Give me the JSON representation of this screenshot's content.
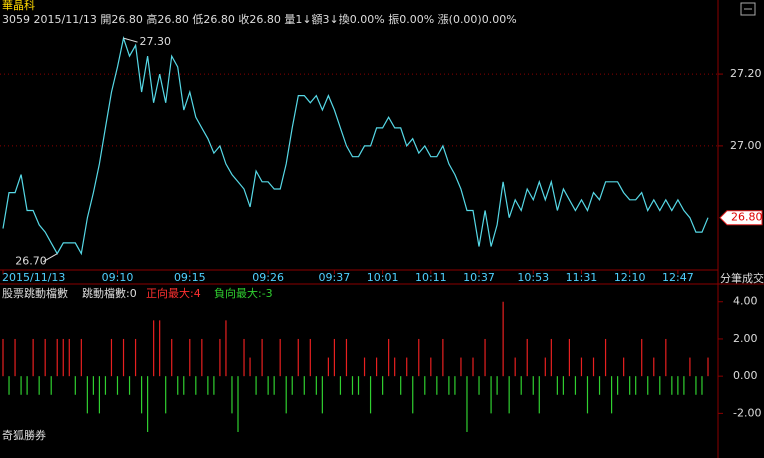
{
  "header": {
    "name": "華晶科",
    "info": "3059 2015/11/13 開26.80 高26.80 低26.80 收26.80 量1↓額3↓換0.00% 振0.00% 漲(0.00)0.00%"
  },
  "chart_data": [
    {
      "type": "line",
      "xlabel": "分筆成交",
      "color": "#56d8e6",
      "grid": true,
      "categories": [
        "2015/11/13",
        null,
        null,
        null,
        null,
        null,
        null,
        null,
        null,
        null,
        null,
        null,
        null,
        null,
        null,
        null,
        null,
        null,
        null,
        "09:10",
        null,
        null,
        null,
        null,
        null,
        null,
        null,
        null,
        null,
        null,
        null,
        "09:15",
        null,
        null,
        null,
        null,
        null,
        null,
        null,
        null,
        null,
        null,
        null,
        null,
        "09:26",
        null,
        null,
        null,
        null,
        null,
        null,
        null,
        null,
        null,
        null,
        "09:37",
        null,
        null,
        null,
        null,
        null,
        null,
        null,
        "10:01",
        null,
        null,
        null,
        null,
        null,
        null,
        null,
        "10:11",
        null,
        null,
        null,
        null,
        null,
        null,
        null,
        "10:37",
        null,
        null,
        null,
        null,
        null,
        null,
        null,
        null,
        "10:53",
        null,
        null,
        null,
        null,
        null,
        null,
        null,
        "11:31",
        null,
        null,
        null,
        null,
        null,
        null,
        null,
        "12:10",
        null,
        null,
        null,
        null,
        null,
        null,
        null,
        "12:47",
        null,
        null,
        null,
        null,
        null
      ],
      "values": [
        26.77,
        26.87,
        26.87,
        26.92,
        26.82,
        26.82,
        26.78,
        26.76,
        26.73,
        26.7,
        26.73,
        26.73,
        26.73,
        26.7,
        26.8,
        26.87,
        26.95,
        27.05,
        27.15,
        27.22,
        27.3,
        27.25,
        27.28,
        27.15,
        27.25,
        27.12,
        27.2,
        27.12,
        27.25,
        27.22,
        27.1,
        27.15,
        27.08,
        27.05,
        27.02,
        26.98,
        27.0,
        26.95,
        26.92,
        26.9,
        26.88,
        26.83,
        26.93,
        26.9,
        26.9,
        26.88,
        26.88,
        26.95,
        27.05,
        27.14,
        27.14,
        27.12,
        27.14,
        27.1,
        27.14,
        27.1,
        27.05,
        27.0,
        26.97,
        26.97,
        27.0,
        27.0,
        27.05,
        27.05,
        27.08,
        27.05,
        27.05,
        27.0,
        27.02,
        26.98,
        27.0,
        26.97,
        26.97,
        27.0,
        26.95,
        26.92,
        26.88,
        26.82,
        26.82,
        26.72,
        26.82,
        26.72,
        26.78,
        26.9,
        26.8,
        26.85,
        26.82,
        26.88,
        26.85,
        26.9,
        26.85,
        26.9,
        26.82,
        26.88,
        26.85,
        26.82,
        26.85,
        26.82,
        26.87,
        26.85,
        26.9,
        26.9,
        26.9,
        26.87,
        26.85,
        26.85,
        26.87,
        26.82,
        26.85,
        26.82,
        26.85,
        26.82,
        26.85,
        26.82,
        26.8,
        26.76,
        26.76,
        26.8
      ],
      "high": {
        "value": 27.3,
        "label": "27.30"
      },
      "low": {
        "value": 26.7,
        "label": "26.70"
      },
      "last": {
        "value": 26.8,
        "label": "26.80"
      },
      "ylim": [
        26.66,
        27.345
      ],
      "yticks": [
        {
          "value": 27.2,
          "label": "27.20"
        },
        {
          "value": 27.0,
          "label": "27.00"
        }
      ]
    },
    {
      "type": "bar",
      "title": "股票跳動檔數",
      "stat": "跳動檔數:0",
      "max_up": "正向最大:4",
      "max_down": "負向最大:-3",
      "colors": {
        "up": "#e82020",
        "down": "#30d030"
      },
      "values": [
        2,
        -1,
        2,
        -1,
        -1,
        2,
        -1,
        2,
        -1,
        2,
        2,
        2,
        -1,
        2,
        -2,
        -1,
        -2,
        -1,
        2,
        -1,
        2,
        -1,
        2,
        -2,
        -3,
        3,
        3,
        -2,
        2,
        -1,
        -1,
        2,
        -1,
        2,
        -1,
        -1,
        2,
        3,
        -2,
        -3,
        2,
        1,
        -1,
        2,
        -1,
        -1,
        2,
        -2,
        -1,
        2,
        -1,
        2,
        -1,
        -2,
        1,
        2,
        -1,
        2,
        -1,
        -1,
        1,
        -2,
        1,
        -1,
        2,
        1,
        -1,
        1,
        -2,
        2,
        -1,
        1,
        -1,
        2,
        -1,
        -1,
        1,
        -3,
        1,
        -1,
        2,
        -2,
        -1,
        4,
        -2,
        1,
        -1,
        2,
        -1,
        -2,
        1,
        2,
        -1,
        -1,
        2,
        -1,
        1,
        -2,
        1,
        -1,
        2,
        -2,
        -1,
        1,
        -1,
        -1,
        2,
        -1,
        1,
        -1,
        2,
        -1,
        -1,
        -1,
        1,
        -1,
        -1,
        1
      ],
      "ylim": [
        -3.7,
        4.9
      ],
      "yticks": [
        {
          "value": 4,
          "label": "4.00"
        },
        {
          "value": 2,
          "label": "2.00"
        },
        {
          "value": 0,
          "label": "0.00"
        },
        {
          "value": -2,
          "label": "-2.00"
        }
      ]
    }
  ],
  "footer": "奇狐勝券"
}
